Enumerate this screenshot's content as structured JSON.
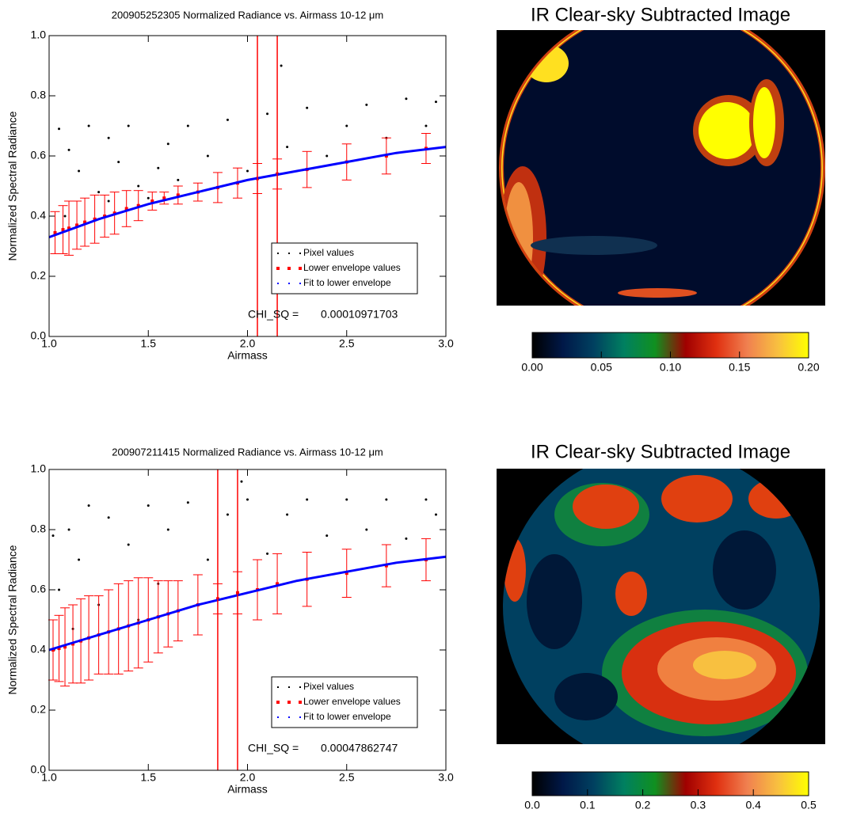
{
  "chart_data": [
    {
      "type": "scatter",
      "title": "200905252305 Normalized Radiance vs. Airmass 10-12 μm",
      "x_label": "Airmass",
      "y_label": "Normalized Spectral Radiance",
      "xlim": [
        1,
        3
      ],
      "ylim": [
        0,
        1
      ],
      "xticks": [
        {
          "value": 1,
          "label": "1.0"
        },
        1.5,
        {
          "value": 2,
          "label": "2.0"
        },
        2.5,
        {
          "value": 3,
          "label": "3.0"
        }
      ],
      "yticks": [
        {
          "value": 0,
          "label": "0.0"
        },
        0.2,
        0.4,
        0.6,
        0.8,
        {
          "value": 1,
          "label": "1.0"
        }
      ],
      "series": [
        {
          "name": "Pixel values",
          "color": "#000000",
          "x": [
            1.05,
            1.1,
            1.15,
            1.2,
            1.25,
            1.3,
            1.35,
            1.4,
            1.45,
            1.5,
            1.55,
            1.6,
            1.65,
            1.7,
            1.8,
            1.9,
            2.0,
            2.1,
            2.2,
            2.3,
            2.4,
            2.5,
            2.6,
            2.7,
            2.8,
            2.9,
            2.95,
            2.17,
            1.08,
            1.3
          ],
          "values": [
            0.69,
            0.62,
            0.55,
            0.7,
            0.48,
            0.66,
            0.58,
            0.7,
            0.5,
            0.46,
            0.56,
            0.64,
            0.52,
            0.7,
            0.6,
            0.72,
            0.55,
            0.74,
            0.63,
            0.76,
            0.6,
            0.7,
            0.77,
            0.66,
            0.79,
            0.7,
            0.78,
            0.9,
            0.4,
            0.45
          ]
        },
        {
          "name": "Lower envelope values",
          "color": "#ff0000",
          "x": [
            1.03,
            1.07,
            1.1,
            1.14,
            1.18,
            1.23,
            1.28,
            1.33,
            1.39,
            1.45,
            1.52,
            1.58,
            1.65,
            1.75,
            1.85,
            1.95,
            2.05,
            2.15,
            2.3,
            2.5,
            2.7,
            2.9
          ],
          "values": [
            0.345,
            0.355,
            0.36,
            0.37,
            0.38,
            0.39,
            0.4,
            0.41,
            0.425,
            0.435,
            0.45,
            0.46,
            0.47,
            0.48,
            0.495,
            0.51,
            0.525,
            0.54,
            0.555,
            0.58,
            0.6,
            0.625
          ],
          "errors": [
            0.07,
            0.08,
            0.09,
            0.08,
            0.08,
            0.08,
            0.07,
            0.07,
            0.06,
            0.05,
            0.03,
            0.02,
            0.03,
            0.03,
            0.05,
            0.05,
            0.05,
            0.05,
            0.06,
            0.06,
            0.06,
            0.05
          ]
        },
        {
          "name": "Fit to lower envelope",
          "color": "#0000ff",
          "x": [
            1,
            1.25,
            1.5,
            1.75,
            2,
            2.25,
            2.5,
            2.75,
            3
          ],
          "values": [
            0.33,
            0.39,
            0.44,
            0.48,
            0.52,
            0.55,
            0.58,
            0.61,
            0.63
          ]
        }
      ],
      "vlines": [
        2.05,
        2.15
      ],
      "vline_color": "#ff0000",
      "legend": "lower right",
      "annotation": {
        "label": "CHI_SQ =",
        "value": "0.00010971703"
      }
    },
    {
      "type": "image",
      "title": "IR Clear-sky Subtracted Image",
      "colorbar": {
        "colors": [
          "#000000",
          "#001848",
          "#004060",
          "#008060",
          "#109020",
          "#a00000",
          "#e03010",
          "#f08050",
          "#f8c040",
          "#ffff00"
        ],
        "lim": [
          0,
          0.2
        ],
        "ticks": [
          {
            "value": 0,
            "label": "0.00"
          },
          0.05,
          {
            "value": 0.1,
            "label": "0.10"
          },
          0.15,
          {
            "value": 0.2,
            "label": "0.20"
          }
        ]
      }
    },
    {
      "type": "scatter",
      "title": "200907211415 Normalized Radiance vs. Airmass 10-12 μm",
      "x_label": "Airmass",
      "y_label": "Normalized Spectral Radiance",
      "xlim": [
        1,
        3
      ],
      "ylim": [
        0,
        1
      ],
      "xticks": [
        {
          "value": 1,
          "label": "1.0"
        },
        1.5,
        {
          "value": 2,
          "label": "2.0"
        },
        2.5,
        {
          "value": 3,
          "label": "3.0"
        }
      ],
      "yticks": [
        {
          "value": 0,
          "label": "0.0"
        },
        0.2,
        0.4,
        0.6,
        0.8,
        {
          "value": 1,
          "label": "1.0"
        }
      ],
      "series": [
        {
          "name": "Pixel values",
          "color": "#000000",
          "x": [
            1.02,
            1.05,
            1.1,
            1.15,
            1.2,
            1.25,
            1.3,
            1.4,
            1.5,
            1.55,
            1.6,
            1.7,
            1.8,
            1.9,
            2.0,
            2.1,
            2.2,
            2.3,
            2.4,
            2.5,
            2.6,
            2.7,
            2.8,
            2.9,
            2.95,
            1.97,
            1.12,
            1.45
          ],
          "values": [
            0.78,
            0.6,
            0.8,
            0.7,
            0.88,
            0.55,
            0.84,
            0.75,
            0.88,
            0.62,
            0.8,
            0.89,
            0.7,
            0.85,
            0.9,
            0.72,
            0.85,
            0.9,
            0.78,
            0.9,
            0.8,
            0.9,
            0.77,
            0.9,
            0.85,
            0.96,
            0.47,
            0.5
          ]
        },
        {
          "name": "Lower envelope values",
          "color": "#ff0000",
          "x": [
            1.02,
            1.05,
            1.08,
            1.12,
            1.16,
            1.2,
            1.25,
            1.3,
            1.35,
            1.4,
            1.45,
            1.5,
            1.55,
            1.6,
            1.65,
            1.75,
            1.85,
            1.95,
            2.05,
            2.15,
            2.3,
            2.5,
            2.7,
            2.9
          ],
          "values": [
            0.4,
            0.405,
            0.41,
            0.42,
            0.43,
            0.44,
            0.45,
            0.46,
            0.47,
            0.48,
            0.49,
            0.5,
            0.51,
            0.52,
            0.53,
            0.55,
            0.57,
            0.59,
            0.6,
            0.62,
            0.635,
            0.655,
            0.68,
            0.7
          ],
          "errors": [
            0.1,
            0.11,
            0.13,
            0.13,
            0.14,
            0.14,
            0.13,
            0.14,
            0.15,
            0.15,
            0.15,
            0.14,
            0.12,
            0.11,
            0.1,
            0.1,
            0.05,
            0.07,
            0.1,
            0.1,
            0.09,
            0.08,
            0.07,
            0.07
          ]
        },
        {
          "name": "Fit to lower envelope",
          "color": "#0000ff",
          "x": [
            1,
            1.25,
            1.5,
            1.75,
            2,
            2.25,
            2.5,
            2.75,
            3
          ],
          "values": [
            0.4,
            0.45,
            0.5,
            0.55,
            0.59,
            0.63,
            0.66,
            0.69,
            0.71
          ]
        }
      ],
      "vlines": [
        1.85,
        1.95
      ],
      "vline_color": "#ff0000",
      "legend": "lower right",
      "annotation": {
        "label": "CHI_SQ =",
        "value": "0.00047862747"
      }
    },
    {
      "type": "image",
      "title": "IR Clear-sky Subtracted Image",
      "colorbar": {
        "colors": [
          "#000000",
          "#001848",
          "#004060",
          "#008060",
          "#109020",
          "#a00000",
          "#e03010",
          "#f08050",
          "#f8c040",
          "#ffff00"
        ],
        "lim": [
          0,
          0.5
        ],
        "ticks": [
          {
            "value": 0,
            "label": "0.0"
          },
          0.1,
          0.2,
          0.3,
          0.4,
          0.5
        ]
      }
    }
  ]
}
